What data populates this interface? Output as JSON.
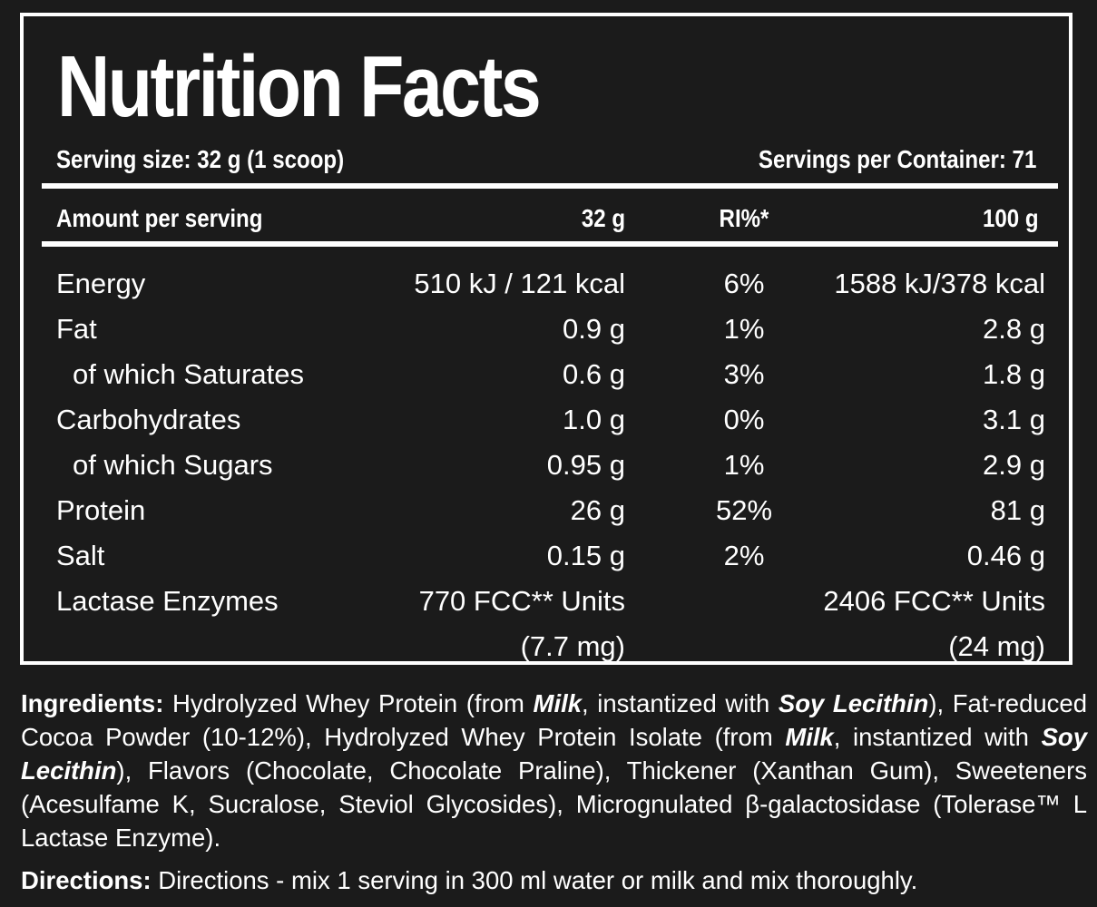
{
  "label": {
    "title": "Nutrition Facts",
    "serving_size": "Serving size: 32 g (1 scoop)",
    "servings_per_container": "Servings per Container: 71",
    "header": {
      "amount_per_serving": "Amount per serving",
      "col_serving": "32 g",
      "col_ri": "RI%*",
      "col_100g": "100 g"
    },
    "rows": [
      {
        "name": "Energy",
        "per_serving": "510 kJ / 121 kcal",
        "ri": "6%",
        "per_100g": "1588 kJ/378 kcal"
      },
      {
        "name": "Fat",
        "per_serving": "0.9 g",
        "ri": "1%",
        "per_100g": "2.8 g"
      },
      {
        "name": "of which Saturates",
        "per_serving": "0.6 g",
        "ri": "3%",
        "per_100g": "1.8 g"
      },
      {
        "name": "Carbohydrates",
        "per_serving": "1.0 g",
        "ri": "0%",
        "per_100g": "3.1 g"
      },
      {
        "name": "of which Sugars",
        "per_serving": "0.95 g",
        "ri": "1%",
        "per_100g": "2.9 g"
      },
      {
        "name": "Protein",
        "per_serving": "26 g",
        "ri": "52%",
        "per_100g": "81 g"
      },
      {
        "name": "Salt",
        "per_serving": "0.15 g",
        "ri": "2%",
        "per_100g": "0.46 g"
      },
      {
        "name": "Lactase Enzymes",
        "per_serving": "770 FCC** Units",
        "ri": "",
        "per_100g": "2406 FCC** Units"
      },
      {
        "name": "",
        "per_serving": "(7.7 mg)",
        "ri": "",
        "per_100g": "(24 mg)"
      }
    ]
  },
  "ingredients": {
    "label": "Ingredients:",
    "t1": " Hydrolyzed Whey Protein (from ",
    "a1": "Milk",
    "t2": ", instantized with ",
    "a2": "Soy Lecithin",
    "t3": "), Fat-reduced Cocoa Powder (10-12%), Hydrolyzed Whey Protein Isolate (from ",
    "a3": "Milk",
    "t4": ", instantized with ",
    "a4": "Soy Lecithin",
    "t5": "), Flavors (Chocolate, Chocolate Praline), Thickener (Xanthan Gum), Sweeteners (Acesulfame K, Sucralose, Steviol Glycosides), Micrognulated β-galactosidase (Tolerase™ L Lactase Enzyme)."
  },
  "directions": {
    "label": "Directions:",
    "text": " Directions - mix 1 serving in 300 ml water or milk and mix thoroughly."
  }
}
